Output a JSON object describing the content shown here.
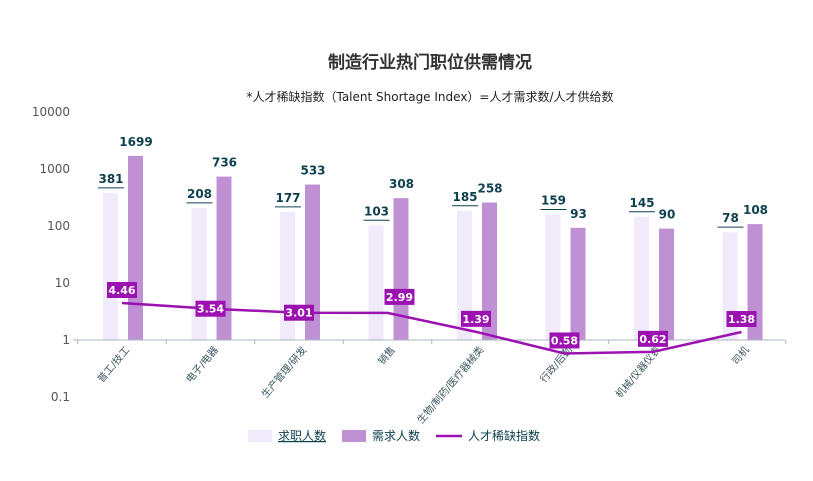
{
  "chart_data": {
    "type": "bar",
    "title": "制造行业热门职位供需情况",
    "subtitle": "*人才稀缺指数（Talent Shortage Index）=人才需求数/人才供给数",
    "yscale": "log",
    "ylim": [
      0.1,
      10000
    ],
    "yticks": [
      "0.1",
      "1",
      "10",
      "100",
      "1000",
      "10000"
    ],
    "ytick_values": [
      0.1,
      1,
      10,
      100,
      1000,
      10000
    ],
    "categories": [
      "普工/技工",
      "电子/电器",
      "生产管理/研发",
      "销售",
      "生物/制药/医疗器械类",
      "行政/后勤",
      "机械/仪器仪表",
      "司机"
    ],
    "series": [
      {
        "name": "求职人数",
        "type": "bar",
        "color": "#f1eafb",
        "values": [
          381,
          208,
          177,
          103,
          185,
          159,
          145,
          78
        ]
      },
      {
        "name": "需求人数",
        "type": "bar",
        "color": "#bf90d4",
        "values": [
          1699,
          736,
          533,
          308,
          258,
          93,
          90,
          108
        ]
      },
      {
        "name": "人才稀缺指数",
        "type": "line",
        "color": "#9b12b0",
        "values": [
          4.46,
          3.54,
          3.01,
          2.99,
          1.39,
          0.58,
          0.62,
          1.38
        ]
      }
    ],
    "legend": "bottom",
    "grid": false
  }
}
